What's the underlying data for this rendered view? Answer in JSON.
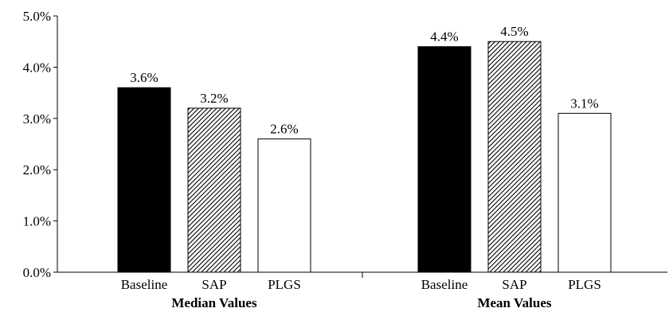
{
  "chart_data": {
    "type": "bar",
    "title": "",
    "xlabel": "",
    "ylabel": "",
    "ylim": [
      0,
      5.0
    ],
    "y_ticks": [
      "0.0%",
      "1.0%",
      "2.0%",
      "3.0%",
      "4.0%",
      "5.0%"
    ],
    "y_tick_values": [
      0,
      1,
      2,
      3,
      4,
      5
    ],
    "grid": false,
    "legend": "none",
    "groups": [
      {
        "label": "Median Values",
        "bars": [
          {
            "category": "Baseline",
            "value": 3.6,
            "label": "3.6%",
            "fill": "solid-black"
          },
          {
            "category": "SAP",
            "value": 3.2,
            "label": "3.2%",
            "fill": "diagonal-hatch"
          },
          {
            "category": "PLGS",
            "value": 2.6,
            "label": "2.6%",
            "fill": "white"
          }
        ]
      },
      {
        "label": "Mean Values",
        "bars": [
          {
            "category": "Baseline",
            "value": 4.4,
            "label": "4.4%",
            "fill": "solid-black"
          },
          {
            "category": "SAP",
            "value": 4.5,
            "label": "4.5%",
            "fill": "diagonal-hatch"
          },
          {
            "category": "PLGS",
            "value": 3.1,
            "label": "3.1%",
            "fill": "white"
          }
        ]
      }
    ],
    "colors": {
      "bar_outline": "#000000",
      "solid": "#000000",
      "hatch_bg": "#ffffff"
    }
  }
}
